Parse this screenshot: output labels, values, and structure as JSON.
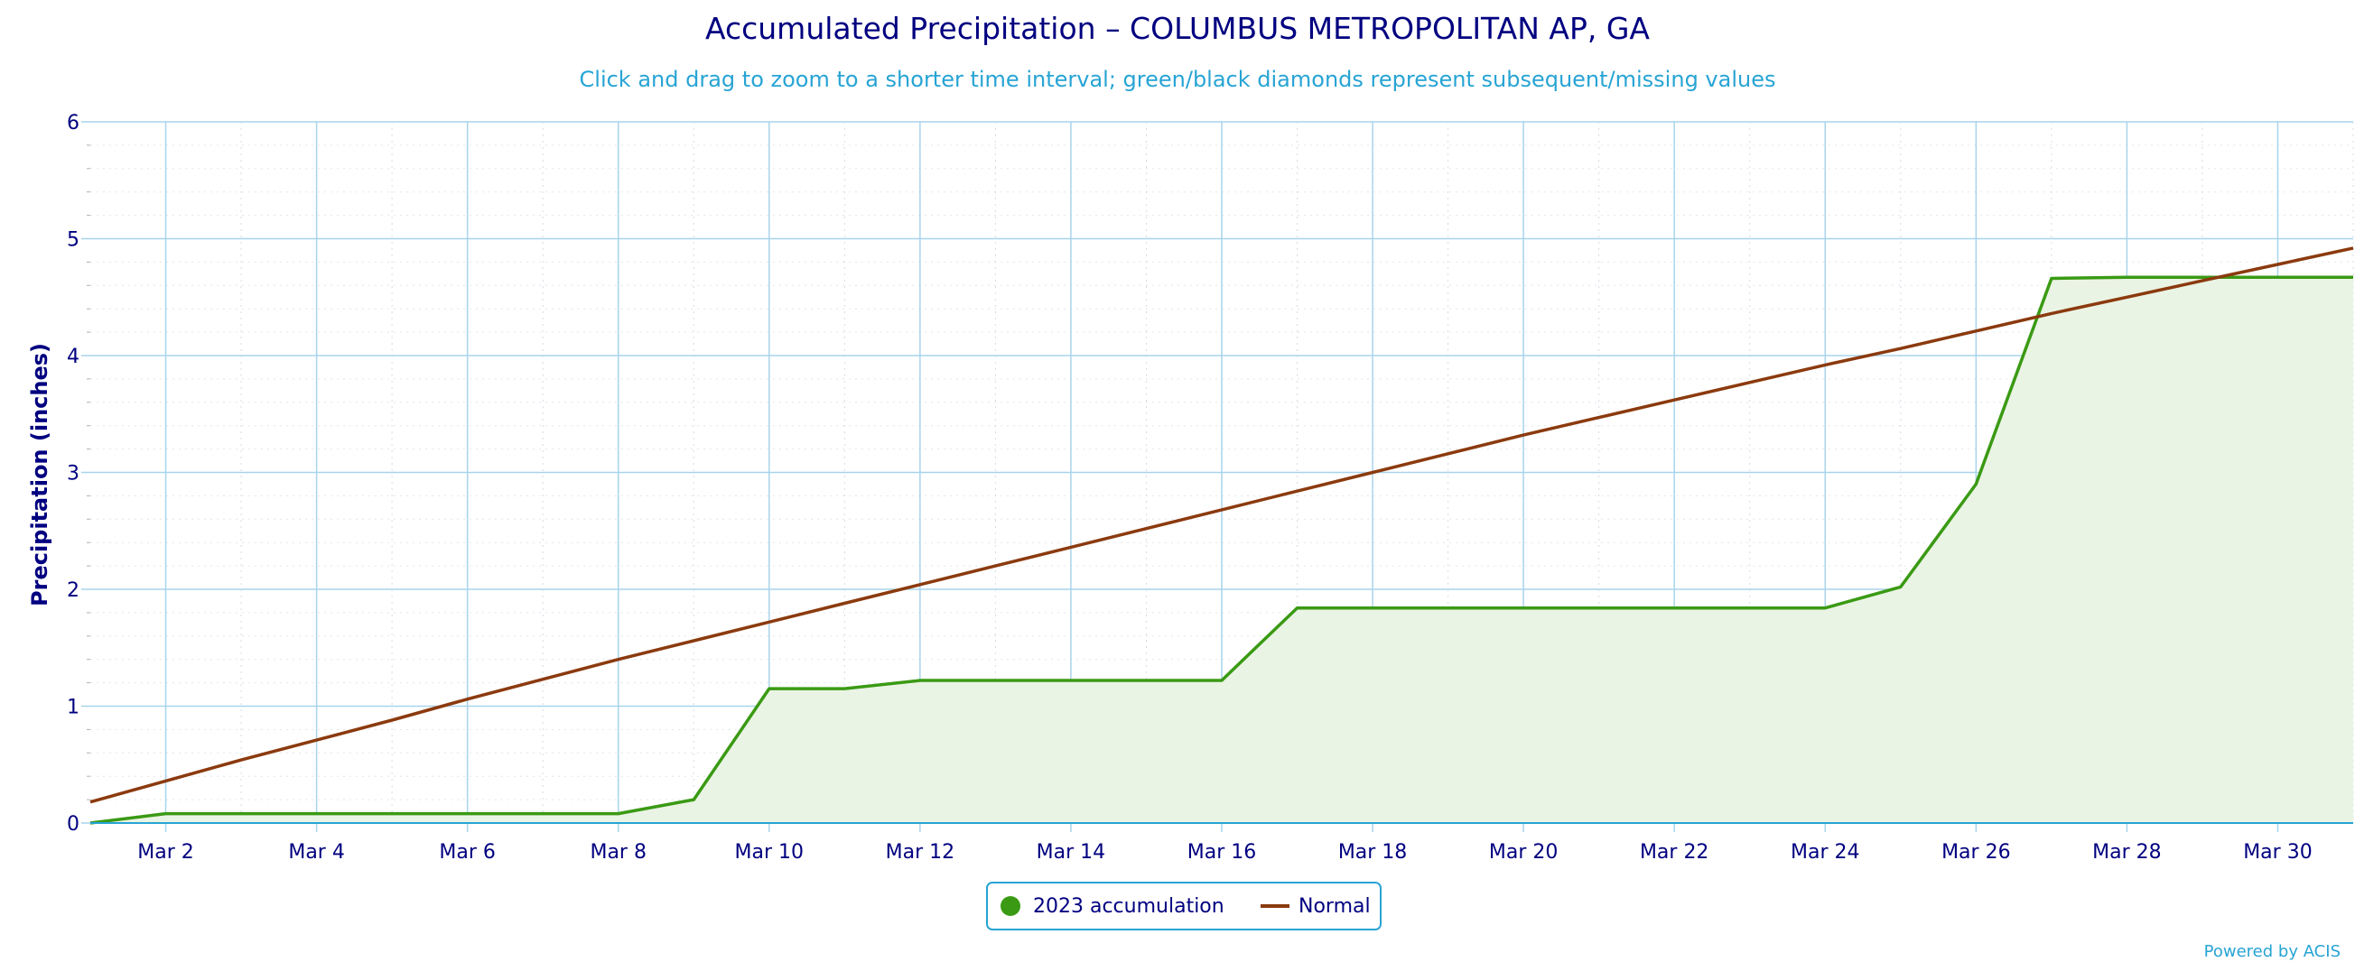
{
  "chart_data": {
    "type": "area",
    "title": "Accumulated Precipitation – COLUMBUS METROPOLITAN AP, GA",
    "subtitle": "Click and drag to zoom to a shorter time interval; green/black diamonds represent subsequent/missing values",
    "xlabel": "",
    "ylabel": "Precipitation (inches)",
    "x_day_range": [
      1,
      31
    ],
    "ylim": [
      0,
      6
    ],
    "y_ticks": [
      "0",
      "1",
      "2",
      "3",
      "4",
      "5",
      "6"
    ],
    "x_ticks": [
      {
        "day": 2,
        "label": "Mar 2"
      },
      {
        "day": 4,
        "label": "Mar 4"
      },
      {
        "day": 6,
        "label": "Mar 6"
      },
      {
        "day": 8,
        "label": "Mar 8"
      },
      {
        "day": 10,
        "label": "Mar 10"
      },
      {
        "day": 12,
        "label": "Mar 12"
      },
      {
        "day": 14,
        "label": "Mar 14"
      },
      {
        "day": 16,
        "label": "Mar 16"
      },
      {
        "day": 18,
        "label": "Mar 18"
      },
      {
        "day": 20,
        "label": "Mar 20"
      },
      {
        "day": 22,
        "label": "Mar 22"
      },
      {
        "day": 24,
        "label": "Mar 24"
      },
      {
        "day": 26,
        "label": "Mar 26"
      },
      {
        "day": 28,
        "label": "Mar 28"
      },
      {
        "day": 30,
        "label": "Mar 30"
      }
    ],
    "grid": true,
    "legend_position": "bottom-center",
    "series": [
      {
        "name": "2023 accumulation",
        "type": "area",
        "color": "#3a9a14",
        "fill": "#eaf4e4",
        "x": [
          1,
          2,
          3,
          4,
          5,
          6,
          7,
          8,
          9,
          10,
          11,
          12,
          13,
          14,
          15,
          16,
          17,
          18,
          19,
          20,
          21,
          22,
          23,
          24,
          25,
          26,
          27,
          28,
          29,
          30,
          31
        ],
        "values": [
          0.0,
          0.08,
          0.08,
          0.08,
          0.08,
          0.08,
          0.08,
          0.08,
          0.2,
          1.15,
          1.15,
          1.22,
          1.22,
          1.22,
          1.22,
          1.22,
          1.84,
          1.84,
          1.84,
          1.84,
          1.84,
          1.84,
          1.84,
          1.84,
          2.02,
          2.9,
          4.66,
          4.67,
          4.67,
          4.67,
          4.67
        ]
      },
      {
        "name": "Normal",
        "type": "line",
        "color": "#8b3a0e",
        "x": [
          1,
          2,
          3,
          4,
          5,
          6,
          7,
          8,
          9,
          10,
          11,
          12,
          13,
          14,
          15,
          16,
          17,
          18,
          19,
          20,
          21,
          22,
          23,
          24,
          25,
          26,
          27,
          28,
          29,
          30,
          31
        ],
        "values": [
          0.18,
          0.36,
          0.54,
          0.71,
          0.88,
          1.06,
          1.23,
          1.4,
          1.56,
          1.72,
          1.88,
          2.04,
          2.2,
          2.36,
          2.52,
          2.68,
          2.84,
          3.0,
          3.16,
          3.32,
          3.47,
          3.62,
          3.77,
          3.92,
          4.06,
          4.21,
          4.36,
          4.5,
          4.64,
          4.78,
          4.92
        ]
      }
    ]
  },
  "legend": {
    "items": [
      {
        "label": "2023 accumulation",
        "color": "#3a9a14"
      },
      {
        "label": "Normal",
        "color": "#8b3a0e"
      }
    ]
  },
  "credit": "Powered by ACIS"
}
